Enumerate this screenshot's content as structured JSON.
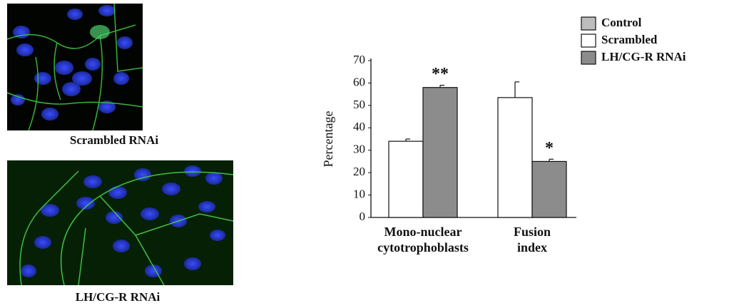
{
  "panels": [
    {
      "caption": "Scrambled RNAi"
    },
    {
      "caption": "LH/CG-R RNAi"
    }
  ],
  "chart_data": {
    "type": "bar",
    "y_label": "Percentage",
    "categories": [
      [
        "Mono-nuclear",
        "cytotrophoblasts"
      ],
      [
        "Fusion",
        "index"
      ]
    ],
    "series": [
      {
        "name": "Control",
        "color": "#bdbdbd",
        "values": [
          null,
          null
        ],
        "errors": [
          null,
          null
        ]
      },
      {
        "name": "Scrambled",
        "color": "#ffffff",
        "values": [
          34,
          53.5
        ],
        "errors": [
          1,
          7
        ]
      },
      {
        "name": "LH/CG-R RNAi",
        "color": "#8c8c8c",
        "values": [
          58,
          25
        ],
        "errors": [
          1,
          1
        ]
      }
    ],
    "annotations": [
      "**",
      "*"
    ],
    "ylim": [
      0,
      70
    ],
    "yticks": [
      0,
      10,
      20,
      30,
      40,
      50,
      60,
      70
    ],
    "grid": false,
    "legend": "top-right"
  }
}
